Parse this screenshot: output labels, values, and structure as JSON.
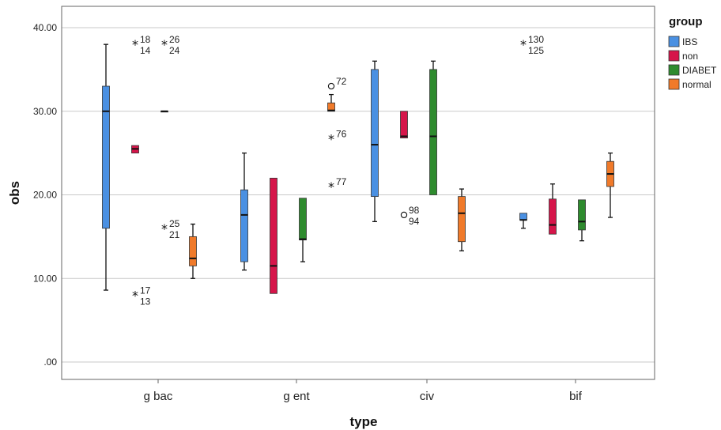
{
  "chart_data": {
    "type": "boxplot",
    "xlabel": "type",
    "ylabel": "obs",
    "ylim": [
      0,
      40
    ],
    "yticks": [
      {
        "value": 0,
        "label": ".00"
      },
      {
        "value": 10,
        "label": "10.00"
      },
      {
        "value": 20,
        "label": "20.00"
      },
      {
        "value": 30,
        "label": "30.00"
      },
      {
        "value": 40,
        "label": "40.00"
      }
    ],
    "grid": true,
    "legend": {
      "title": "group",
      "position": "top-right"
    },
    "categories": [
      "g bac",
      "g ent",
      "civ",
      "bif"
    ],
    "series": [
      {
        "name": "IBS",
        "color": "#4a90e2",
        "boxes": [
          {
            "min": 8.6,
            "q1": 16.0,
            "median": 30.0,
            "q3": 33.0,
            "max": 38.0
          },
          {
            "min": 11.0,
            "q1": 12.0,
            "median": 17.6,
            "q3": 20.6,
            "max": 25.0
          },
          {
            "min": 16.8,
            "q1": 19.8,
            "median": 26.0,
            "q3": 35.0,
            "max": 36.0
          },
          {
            "min": 16.0,
            "q1": 17.0,
            "median": 17.0,
            "q3": 17.8,
            "max": 17.8
          }
        ]
      },
      {
        "name": "non",
        "color": "#d6154a",
        "boxes": [
          {
            "min": 25.0,
            "q1": 25.0,
            "median": 25.5,
            "q3": 25.9,
            "max": 25.9
          },
          {
            "min": 8.2,
            "q1": 8.2,
            "median": 11.5,
            "q3": 22.0,
            "max": 22.0
          },
          {
            "min": 26.8,
            "q1": 26.8,
            "median": 27.0,
            "q3": 30.0,
            "max": 30.0
          },
          {
            "min": 15.3,
            "q1": 15.3,
            "median": 16.4,
            "q3": 19.5,
            "max": 21.3
          }
        ]
      },
      {
        "name": "DIABET",
        "color": "#2e8b2e",
        "boxes": [
          {
            "min": 30.0,
            "q1": 30.0,
            "median": 30.0,
            "q3": 30.0,
            "max": 30.0
          },
          {
            "min": 12.0,
            "q1": 14.6,
            "median": 14.7,
            "q3": 19.6,
            "max": 19.6
          },
          {
            "min": 20.0,
            "q1": 20.0,
            "median": 27.0,
            "q3": 35.0,
            "max": 36.0
          },
          {
            "min": 14.5,
            "q1": 15.8,
            "median": 16.8,
            "q3": 19.4,
            "max": 19.4
          }
        ]
      },
      {
        "name": "normal",
        "color": "#f07a2a",
        "boxes": [
          {
            "min": 10.0,
            "q1": 11.5,
            "median": 12.4,
            "q3": 15.0,
            "max": 16.5
          },
          {
            "min": 30.0,
            "q1": 30.0,
            "median": 30.1,
            "q3": 31.0,
            "max": 32.0
          },
          {
            "min": 13.3,
            "q1": 14.4,
            "median": 17.8,
            "q3": 19.8,
            "max": 20.7
          },
          {
            "min": 17.3,
            "q1": 21.0,
            "median": 22.5,
            "q3": 24.0,
            "max": 25.0
          }
        ]
      }
    ],
    "outliers": [
      {
        "category": "g bac",
        "series": "non",
        "value": 38,
        "marker": "star",
        "labels": [
          "18",
          "14"
        ]
      },
      {
        "category": "g bac",
        "series": "DIABET",
        "value": 38,
        "marker": "star",
        "labels": [
          "26",
          "24"
        ]
      },
      {
        "category": "g bac",
        "series": "DIABET",
        "value": 16,
        "marker": "star",
        "labels": [
          "25",
          "21"
        ]
      },
      {
        "category": "g bac",
        "series": "non",
        "value": 8,
        "marker": "star",
        "labels": [
          "17",
          "13"
        ]
      },
      {
        "category": "g ent",
        "series": "normal",
        "value": 33,
        "marker": "circle",
        "labels": [
          "72"
        ]
      },
      {
        "category": "g ent",
        "series": "normal",
        "value": 26.7,
        "marker": "star",
        "labels": [
          "76"
        ]
      },
      {
        "category": "g ent",
        "series": "normal",
        "value": 21,
        "marker": "star",
        "labels": [
          "77"
        ]
      },
      {
        "category": "civ",
        "series": "non",
        "value": 17.6,
        "marker": "circle",
        "labels": [
          "98",
          "94"
        ]
      },
      {
        "category": "bif",
        "series": "IBS",
        "value": 38,
        "marker": "star",
        "labels": [
          "130",
          "125"
        ]
      }
    ]
  }
}
